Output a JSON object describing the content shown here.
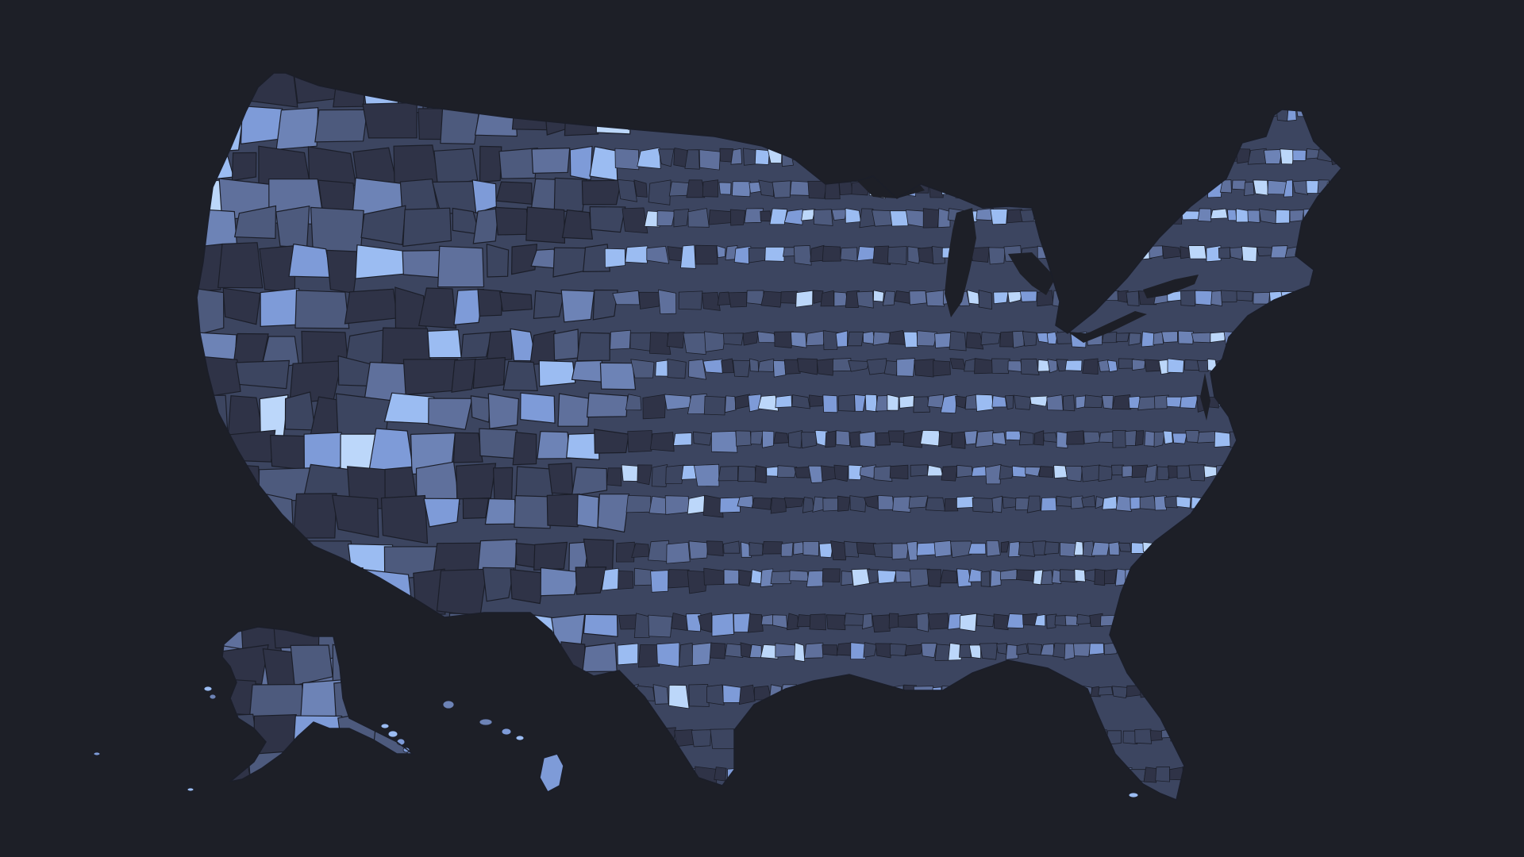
{
  "map": {
    "type": "choropleth",
    "subject": "us-counties",
    "regions_shown": [
      "contiguous-united-states",
      "alaska",
      "hawaii"
    ],
    "legend": null,
    "title": "",
    "labels": []
  },
  "colors": {
    "background": "#1d1f27",
    "border": "#1b1e29",
    "palette": [
      "#2f3347",
      "#3c4560",
      "#4d5a7d",
      "#5f709c",
      "#6d83b6",
      "#7e9bd8",
      "#9bbcf2",
      "#bcd7fa"
    ]
  }
}
